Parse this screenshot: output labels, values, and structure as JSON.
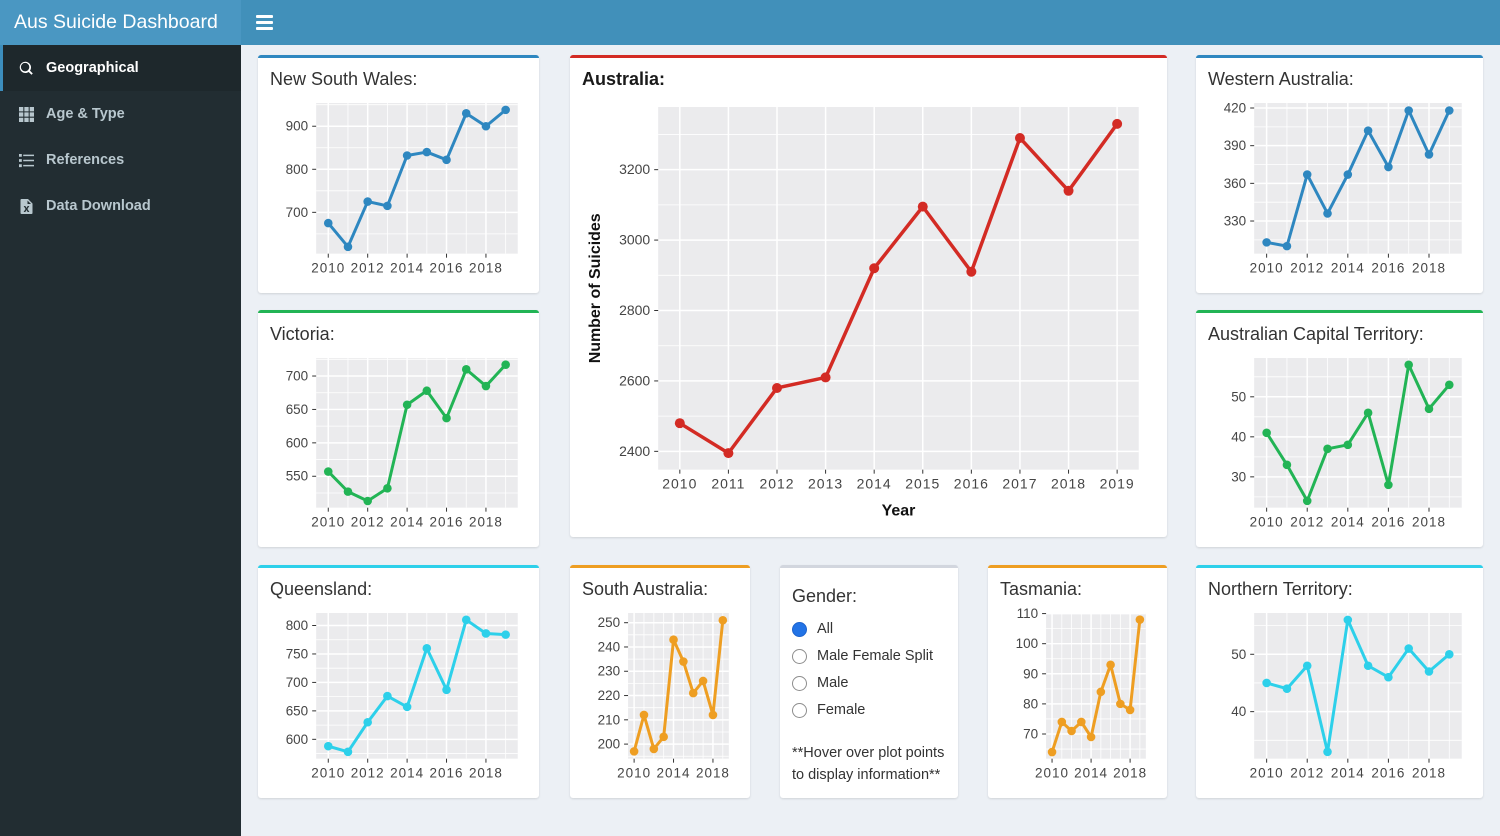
{
  "header": {
    "title": "Aus Suicide Dashboard"
  },
  "sidebar": {
    "items": [
      {
        "label": "Geographical",
        "icon": "search-icon",
        "active": true
      },
      {
        "label": "Age & Type",
        "icon": "table-grid-icon",
        "active": false
      },
      {
        "label": "References",
        "icon": "list-icon",
        "active": false
      },
      {
        "label": "Data Download",
        "icon": "file-excel-icon",
        "active": false
      }
    ]
  },
  "gender": {
    "title": "Gender:",
    "options": [
      {
        "label": "All",
        "selected": true
      },
      {
        "label": "Male Female Split",
        "selected": false
      },
      {
        "label": "Male",
        "selected": false
      },
      {
        "label": "Female",
        "selected": false
      }
    ],
    "note": "**Hover over plot points to display information**",
    "selected_color": "#2273e6"
  },
  "chart_data": {
    "note": "see charts object; all series are yearly line charts of number of suicides 2010-2019"
  },
  "charts": {
    "nsw": {
      "type": "line",
      "title": "New South Wales:",
      "color": "#2e87c0",
      "x": [
        2010,
        2011,
        2012,
        2013,
        2014,
        2015,
        2016,
        2017,
        2018,
        2019
      ],
      "values": [
        675,
        620,
        725,
        715,
        832,
        840,
        822,
        930,
        900,
        938
      ],
      "yticks": [
        700,
        800,
        900
      ],
      "ylim": [
        604,
        954
      ],
      "xticks": [
        2010,
        2012,
        2014,
        2016,
        2018
      ]
    },
    "vic": {
      "type": "line",
      "title": "Victoria:",
      "color": "#22b455",
      "x": [
        2010,
        2011,
        2012,
        2013,
        2014,
        2015,
        2016,
        2017,
        2018,
        2019
      ],
      "values": [
        557,
        527,
        513,
        532,
        657,
        678,
        637,
        710,
        685,
        717
      ],
      "yticks": [
        550,
        600,
        650,
        700
      ],
      "ylim": [
        503,
        727
      ],
      "xticks": [
        2010,
        2012,
        2014,
        2016,
        2018
      ]
    },
    "aus": {
      "type": "line",
      "title": "Australia:",
      "color": "#d32b24",
      "x": [
        2010,
        2011,
        2012,
        2013,
        2014,
        2015,
        2016,
        2017,
        2018,
        2019
      ],
      "values": [
        2480,
        2395,
        2580,
        2610,
        2920,
        3095,
        2910,
        3290,
        3140,
        3330
      ],
      "yticks": [
        2400,
        2600,
        2800,
        3000,
        3200
      ],
      "ylim": [
        2348,
        3378
      ],
      "xticks": [
        2010,
        2011,
        2012,
        2013,
        2014,
        2015,
        2016,
        2017,
        2018,
        2019
      ],
      "xlabel": "Year",
      "ylabel": "Number of Suicides"
    },
    "wa": {
      "type": "line",
      "title": "Western Australia:",
      "color": "#2e87c0",
      "x": [
        2010,
        2011,
        2012,
        2013,
        2014,
        2015,
        2016,
        2017,
        2018,
        2019
      ],
      "values": [
        313,
        310,
        367,
        336,
        367,
        402,
        373,
        418,
        383,
        418
      ],
      "yticks": [
        330,
        360,
        390,
        420
      ],
      "ylim": [
        304,
        424
      ],
      "xticks": [
        2010,
        2012,
        2014,
        2016,
        2018
      ]
    },
    "act": {
      "type": "line",
      "title": "Australian Capital Territory:",
      "color": "#22b455",
      "x": [
        2010,
        2011,
        2012,
        2013,
        2014,
        2015,
        2016,
        2017,
        2018,
        2019
      ],
      "values": [
        41,
        33,
        24,
        37,
        38,
        46,
        28,
        58,
        47,
        53
      ],
      "yticks": [
        30,
        40,
        50
      ],
      "ylim": [
        22.3,
        59.7
      ],
      "xticks": [
        2010,
        2012,
        2014,
        2016,
        2018
      ]
    },
    "qld": {
      "type": "line",
      "title": "Queensland:",
      "color": "#2dd0ea",
      "x": [
        2010,
        2011,
        2012,
        2013,
        2014,
        2015,
        2016,
        2017,
        2018,
        2019
      ],
      "values": [
        588,
        578,
        630,
        676,
        657,
        760,
        687,
        810,
        786,
        784
      ],
      "yticks": [
        600,
        650,
        700,
        750,
        800
      ],
      "ylim": [
        566,
        822
      ],
      "xticks": [
        2010,
        2012,
        2014,
        2016,
        2018
      ]
    },
    "sa": {
      "type": "line",
      "title": "South Australia:",
      "color": "#ee9e22",
      "x": [
        2010,
        2011,
        2012,
        2013,
        2014,
        2015,
        2016,
        2017,
        2018,
        2019
      ],
      "values": [
        197,
        212,
        198,
        203,
        243,
        234,
        221,
        226,
        212,
        251
      ],
      "yticks": [
        200,
        210,
        220,
        230,
        240,
        250
      ],
      "ylim": [
        194,
        254
      ],
      "xticks": [
        2010,
        2014,
        2018
      ]
    },
    "tas": {
      "type": "line",
      "title": "Tasmania:",
      "color": "#ee9e22",
      "x": [
        2010,
        2011,
        2012,
        2013,
        2014,
        2015,
        2016,
        2017,
        2018,
        2019
      ],
      "values": [
        64,
        74,
        71,
        74,
        69,
        84,
        93,
        80,
        78,
        108
      ],
      "yticks": [
        70,
        80,
        90,
        100,
        110
      ],
      "ylim": [
        61.8,
        110.2
      ],
      "xticks": [
        2010,
        2014,
        2018
      ]
    },
    "nt": {
      "type": "line",
      "title": "Northern Territory:",
      "color": "#2dd0ea",
      "x": [
        2010,
        2011,
        2012,
        2013,
        2014,
        2015,
        2016,
        2017,
        2018,
        2019
      ],
      "values": [
        45,
        44,
        48,
        33,
        56,
        48,
        46,
        51,
        47,
        50
      ],
      "yticks": [
        40,
        50
      ],
      "ylim": [
        31.8,
        57.2
      ],
      "xticks": [
        2010,
        2012,
        2014,
        2016,
        2018
      ]
    }
  }
}
